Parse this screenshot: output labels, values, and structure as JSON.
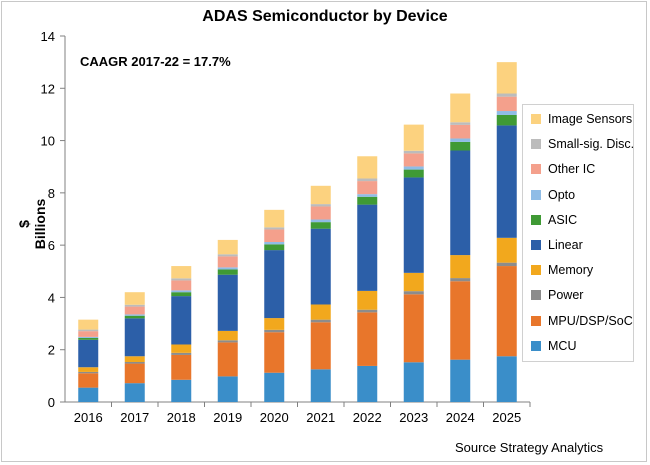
{
  "chart_data": {
    "type": "bar",
    "stacked": true,
    "title": "ADAS Semiconductor by Device",
    "annotation": "CAAGR 2017-22 = 17.7%",
    "ylabel": "$ Billions",
    "xlabel": "",
    "source": "Source Strategy Analytics",
    "ylim": [
      0,
      14
    ],
    "yticks": [
      0,
      2,
      4,
      6,
      8,
      10,
      12,
      14
    ],
    "grid": false,
    "legend_position": "right",
    "categories": [
      "2016",
      "2017",
      "2018",
      "2019",
      "2020",
      "2021",
      "2022",
      "2023",
      "2024",
      "2025"
    ],
    "series": [
      {
        "name": "MCU",
        "color": "#3a8ec9",
        "values": [
          0.55,
          0.72,
          0.85,
          0.98,
          1.12,
          1.25,
          1.38,
          1.52,
          1.62,
          1.75
        ]
      },
      {
        "name": "MPU/DSP/SoC",
        "color": "#e8762b",
        "values": [
          0.55,
          0.75,
          0.95,
          1.3,
          1.55,
          1.8,
          2.05,
          2.6,
          3.0,
          3.45
        ]
      },
      {
        "name": "Power",
        "color": "#8c8c8c",
        "values": [
          0.05,
          0.06,
          0.08,
          0.08,
          0.09,
          0.1,
          0.1,
          0.12,
          0.12,
          0.13
        ]
      },
      {
        "name": "Memory",
        "color": "#f2a81d",
        "values": [
          0.18,
          0.22,
          0.32,
          0.36,
          0.45,
          0.58,
          0.72,
          0.7,
          0.88,
          0.95
        ]
      },
      {
        "name": "Linear",
        "color": "#2c5fa8",
        "values": [
          1.05,
          1.45,
          1.85,
          2.15,
          2.6,
          2.9,
          3.3,
          3.65,
          4.0,
          4.3
        ]
      },
      {
        "name": "ASIC",
        "color": "#3f9a35",
        "values": [
          0.07,
          0.1,
          0.15,
          0.2,
          0.22,
          0.25,
          0.3,
          0.3,
          0.33,
          0.4
        ]
      },
      {
        "name": "Opto",
        "color": "#8fbce6",
        "values": [
          0.04,
          0.05,
          0.07,
          0.08,
          0.09,
          0.1,
          0.1,
          0.12,
          0.13,
          0.15
        ]
      },
      {
        "name": "Other IC",
        "color": "#f4a08c",
        "values": [
          0.22,
          0.3,
          0.38,
          0.42,
          0.48,
          0.5,
          0.5,
          0.5,
          0.52,
          0.55
        ]
      },
      {
        "name": "Small-sig. Disc.",
        "color": "#bcbcbc",
        "values": [
          0.06,
          0.07,
          0.08,
          0.08,
          0.08,
          0.09,
          0.1,
          0.1,
          0.1,
          0.12
        ]
      },
      {
        "name": "Image Sensors",
        "color": "#fcd27f",
        "values": [
          0.38,
          0.48,
          0.47,
          0.55,
          0.67,
          0.7,
          0.85,
          1.0,
          1.1,
          1.2
        ]
      }
    ]
  }
}
